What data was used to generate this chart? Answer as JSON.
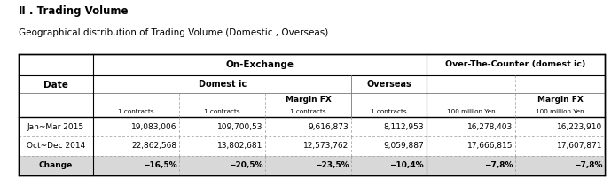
{
  "title1": "Ⅱ . Trading Volume",
  "title2": "Geographical distribution of Trading Volume (Domestic , Overseas)",
  "header_on_exchange": "On-Exchange",
  "header_otc": "Over-The-Counter (domest ic)",
  "header_domestic": "Domest ic",
  "header_overseas": "Overseas",
  "rows": [
    [
      "Jan~Mar 2015",
      "19,083,006",
      "109,700,53",
      "9,616,873",
      "8,112,953",
      "16,278,403",
      "16,223,910"
    ],
    [
      "Oct~Dec 2014",
      "22,862,568",
      "13,802,681",
      "12,573,762",
      "9,059,887",
      "17,666,815",
      "17,607,871"
    ],
    [
      "Change",
      "−16,5%",
      "−20,5%",
      "−23,5%",
      "−10,4%",
      "−7,8%",
      "−7,8%"
    ]
  ],
  "bg_color": "#ffffff",
  "font_color": "#000000",
  "change_bg": "#d8d8d8"
}
